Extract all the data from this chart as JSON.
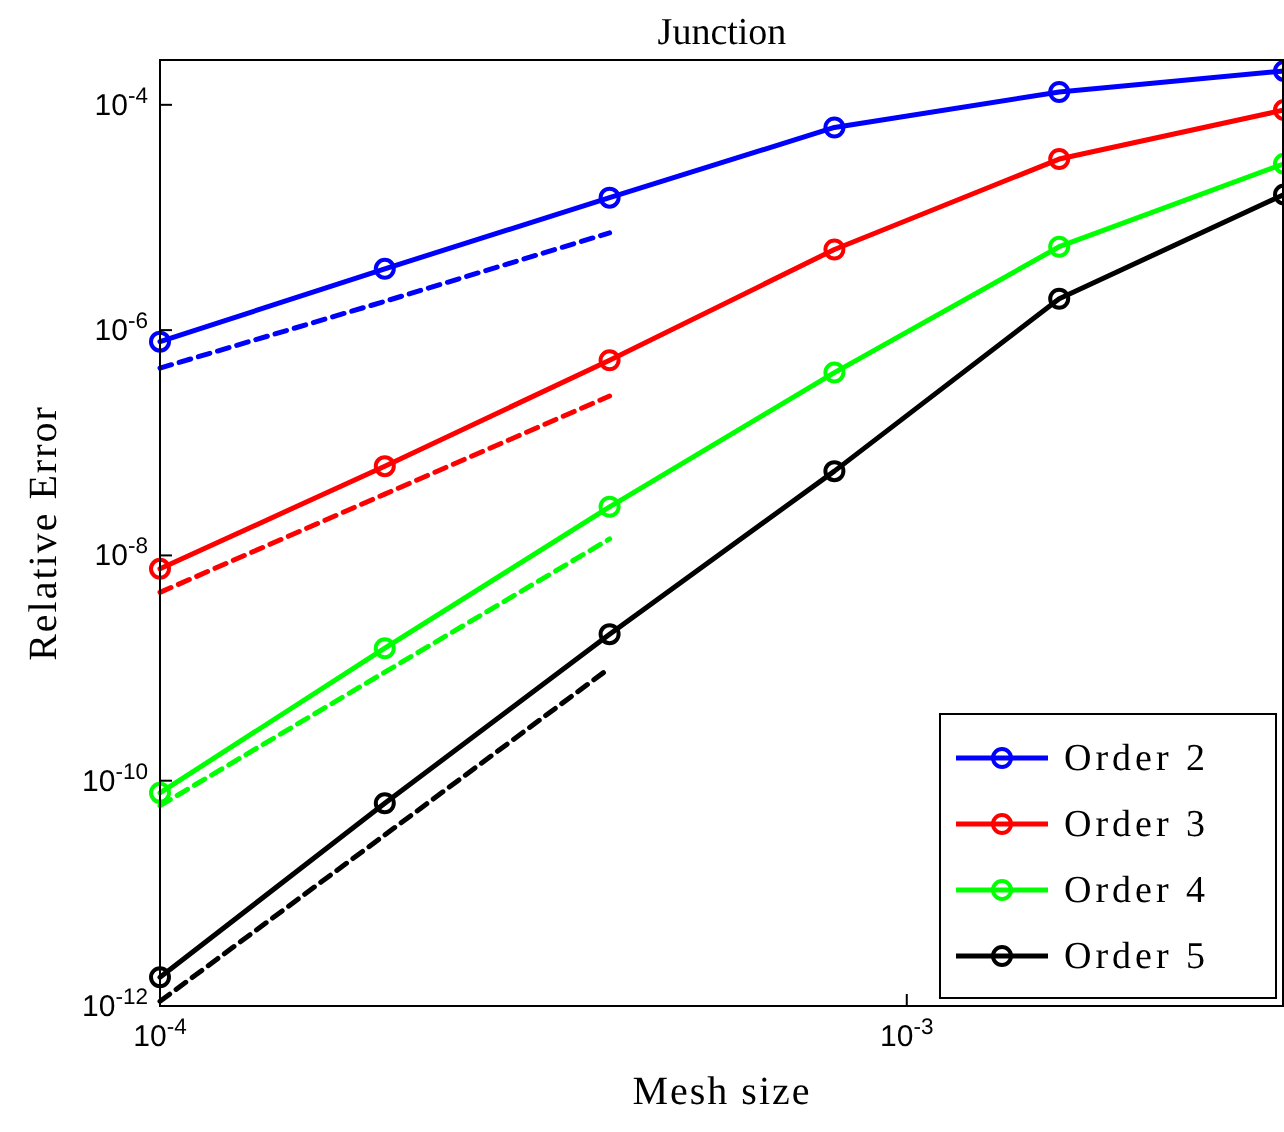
{
  "chart_data": {
    "type": "line",
    "title": "Junction",
    "xlabel": "Mesh size",
    "ylabel": "Relative Error",
    "log": "xy",
    "x": [
      0.0001,
      0.0002,
      0.0004,
      0.0008,
      0.0016,
      0.0032
    ],
    "xlim": [
      0.0001,
      0.0032
    ],
    "ylim": [
      1e-12,
      0.00025
    ],
    "xticks": [
      {
        "value": 0.0001,
        "label": "10$^{-4}$"
      },
      {
        "value": 0.001,
        "label": "10$^{-3}$"
      }
    ],
    "yticks": [
      {
        "value": 1e-12,
        "label": "10$^{-12}$"
      },
      {
        "value": 1e-10,
        "label": "10$^{-10}$"
      },
      {
        "value": 1e-08,
        "label": "10$^{-8}$"
      },
      {
        "value": 1e-06,
        "label": "10$^{-6}$"
      },
      {
        "value": 0.0001,
        "label": "10$^{-4}$"
      }
    ],
    "grid": false,
    "legend": "bottom right",
    "marker": "circle",
    "line_style": "solid",
    "series": [
      {
        "name": "Order 2",
        "color": "#0000ff",
        "values": [
          7.9e-07,
          3.5e-06,
          1.5e-05,
          6.3e-05,
          0.00013,
          0.0002
        ]
      },
      {
        "name": "Order 3",
        "color": "#ff0000",
        "values": [
          7.6e-09,
          6.2e-08,
          5.4e-07,
          5.2e-06,
          3.3e-05,
          9e-05
        ]
      },
      {
        "name": "Order 4",
        "color": "#00ff00",
        "values": [
          7.8e-11,
          1.5e-09,
          2.7e-08,
          4.2e-07,
          5.5e-06,
          3e-05
        ]
      },
      {
        "name": "Order 5",
        "color": "#000000",
        "values": [
          1.8e-12,
          6.3e-11,
          2e-09,
          5.6e-08,
          1.9e-06,
          1.6e-05
        ]
      },
      {
        "color": "#0000ff",
        "values": [
          4.6e-07,
          1.8e-06,
          7.3e-06,
          null,
          null,
          null
        ],
        "line_style": "dashed",
        "marker": "none"
      },
      {
        "color": "#ff0000",
        "values": [
          4.7e-09,
          3.5e-08,
          2.6e-07,
          null,
          null,
          null
        ],
        "line_style": "dashed",
        "marker": "none"
      },
      {
        "color": "#00ff00",
        "values": [
          6e-11,
          9.2e-10,
          1.4e-08,
          null,
          null,
          null
        ],
        "line_style": "dashed",
        "marker": "none"
      },
      {
        "color": "#000000",
        "values": [
          1.1e-12,
          3.3e-11,
          1e-09,
          null,
          null,
          null
        ],
        "line_style": "dashed",
        "marker": "none"
      }
    ]
  }
}
